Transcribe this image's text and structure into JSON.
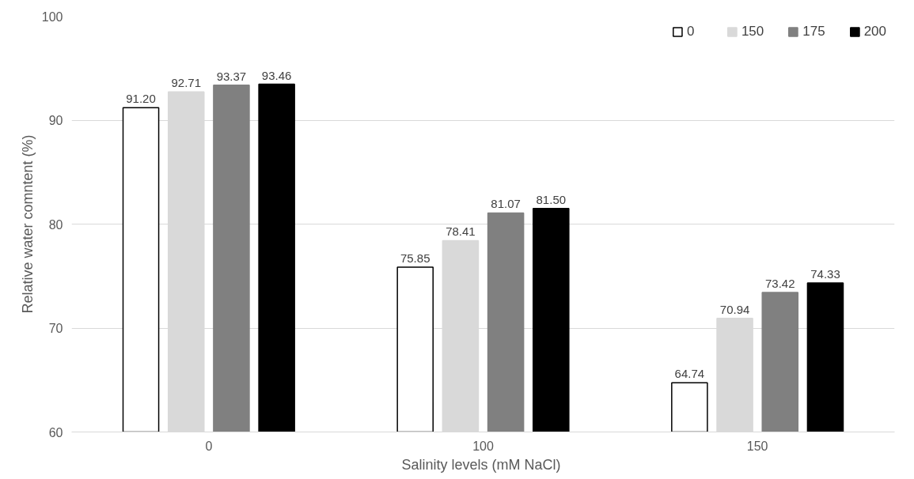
{
  "chart_data": {
    "type": "bar",
    "xlabel": "Salinity levels (mM  NaCl)",
    "ylabel": "Relative water comntent (%)",
    "categories": [
      "0",
      "100",
      "150"
    ],
    "series": [
      {
        "name": "0",
        "color": "#ffffff",
        "values": [
          91.2,
          75.85,
          64.74
        ],
        "value_labels": [
          "91.20",
          "75.85",
          "64.74"
        ]
      },
      {
        "name": "150",
        "color": "#d9d9d9",
        "values": [
          92.71,
          78.41,
          70.94
        ],
        "value_labels": [
          "92.71",
          "78.41",
          "70.94"
        ]
      },
      {
        "name": "175",
        "color": "#808080",
        "values": [
          93.37,
          81.07,
          73.42
        ],
        "value_labels": [
          "93.37",
          "81.07",
          "73.42"
        ]
      },
      {
        "name": "200",
        "color": "#000000",
        "values": [
          93.46,
          81.5,
          74.33
        ],
        "value_labels": [
          "93.46",
          "81.50",
          "74.33"
        ]
      }
    ],
    "ylim": [
      60,
      100
    ],
    "yticks": [
      60,
      70,
      80,
      90,
      100
    ],
    "grid": "y",
    "legend": "top right"
  }
}
